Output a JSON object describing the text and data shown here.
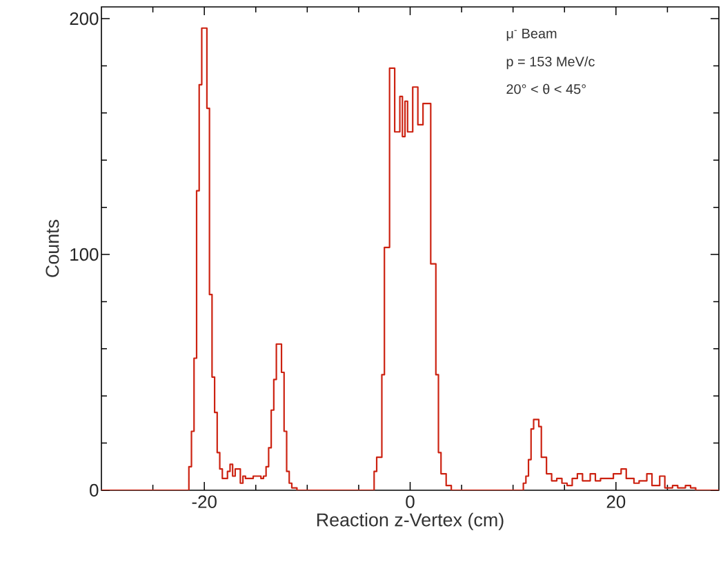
{
  "chart_data": {
    "type": "histogram",
    "xlabel": "Reaction z-Vertex (cm)",
    "ylabel": "Counts",
    "annotations": [
      "μ$^{-}$ Beam",
      "p = 153 MeV/c",
      "20° < θ < 45°"
    ],
    "color": "#cc2211",
    "xlim": [
      -30,
      30
    ],
    "ylim": [
      0,
      205
    ],
    "xticks": [
      {
        "value": -25,
        "label": null
      },
      -20,
      {
        "value": -15,
        "label": null
      },
      {
        "value": -10,
        "label": null
      },
      {
        "value": -5,
        "label": null
      },
      0,
      {
        "value": 5,
        "label": null
      },
      {
        "value": 10,
        "label": null
      },
      {
        "value": 15,
        "label": null
      },
      20,
      {
        "value": 25,
        "label": null
      }
    ],
    "yticks": [
      0,
      {
        "value": 20,
        "label": null
      },
      {
        "value": 40,
        "label": null
      },
      {
        "value": 60,
        "label": null
      },
      {
        "value": 80,
        "label": null
      },
      100,
      {
        "value": 120,
        "label": null
      },
      {
        "value": 140,
        "label": null
      },
      {
        "value": 160,
        "label": null
      },
      {
        "value": 180,
        "label": null
      },
      200
    ],
    "bins": [
      -30,
      -29.75,
      -29.5,
      -29.25,
      -29,
      -28.75,
      -28.5,
      -28.25,
      -28,
      -27.75,
      -27.5,
      -27.25,
      -27,
      -26.75,
      -26.5,
      -26.25,
      -26,
      -25.75,
      -25.5,
      -25.25,
      -25,
      -24.75,
      -24.5,
      -24.25,
      -24,
      -23.75,
      -23.5,
      -23.25,
      -23,
      -22.75,
      -22.5,
      -22.25,
      -22,
      -21.75,
      -21.5,
      -21.25,
      -21,
      -20.75,
      -20.5,
      -20.25,
      -20,
      -19.75,
      -19.5,
      -19.25,
      -19,
      -18.75,
      -18.5,
      -18.25,
      -18,
      -17.75,
      -17.5,
      -17.25,
      -17,
      -16.75,
      -16.5,
      -16.25,
      -16,
      -15.75,
      -15.5,
      -15.25,
      -15,
      -14.75,
      -14.5,
      -14.25,
      -14,
      -13.75,
      -13.5,
      -13.25,
      -13,
      -12.75,
      -12.5,
      -12.25,
      -12,
      -11.75,
      -11.5,
      -11.25,
      -11,
      -10.75,
      -10.5,
      -10.25,
      -10,
      -9.75,
      -9.5,
      -9.25,
      -9,
      -8.75,
      -8.5,
      -8.25,
      -8,
      -7.75,
      -7.5,
      -7.25,
      -7,
      -6.75,
      -6.5,
      -6.25,
      -6,
      -5.75,
      -5.5,
      -5.25,
      -5,
      -4.75,
      -4.5,
      -4.25,
      -4,
      -3.75,
      -3.5,
      -3.25,
      -3,
      -2.75,
      -2.5,
      -2.25,
      -2,
      -1.75,
      -1.5,
      -1.25,
      -1,
      -0.75,
      -0.5,
      -0.25,
      0,
      0.25,
      0.5,
      0.75,
      1,
      1.25,
      1.5,
      1.75,
      2,
      2.25,
      2.5,
      2.75,
      3,
      3.25,
      3.5,
      3.75,
      4,
      4.25,
      4.5,
      4.75,
      5,
      5.25,
      5.5,
      5.75,
      6,
      6.25,
      6.5,
      6.75,
      7,
      7.25,
      7.5,
      7.75,
      8,
      8.25,
      8.5,
      8.75,
      9,
      9.25,
      9.5,
      9.75,
      10,
      10.25,
      10.5,
      10.75,
      11,
      11.25,
      11.5,
      11.75,
      12,
      12.25,
      12.5,
      12.75,
      13,
      13.25,
      13.5,
      13.75,
      14,
      14.25,
      14.5,
      14.75,
      15,
      15.25,
      15.5,
      15.75,
      16,
      16.25,
      16.5,
      16.75,
      17,
      17.25,
      17.5,
      17.75,
      18,
      18.25,
      18.5,
      18.75,
      19,
      19.25,
      19.5,
      19.75,
      20,
      20.25,
      20.5,
      20.75,
      21,
      21.25,
      21.5,
      21.75,
      22,
      22.25,
      22.5,
      22.75,
      23,
      23.25,
      23.5,
      23.75,
      24,
      24.25,
      24.5,
      24.75,
      25,
      25.25,
      25.5,
      25.75,
      26,
      26.25,
      26.5,
      26.75,
      27,
      27.25,
      27.5,
      27.75,
      28,
      28.25,
      28.5,
      28.75,
      29,
      29.25,
      29.5,
      29.75,
      30
    ],
    "values": [
      0,
      0,
      0,
      0,
      0,
      0,
      0,
      0,
      0,
      0,
      0,
      0,
      0,
      0,
      0,
      0,
      0,
      0,
      0,
      0,
      0,
      0,
      0,
      0,
      0,
      0,
      0,
      0,
      0,
      0,
      0,
      0,
      0,
      0,
      10,
      25,
      56,
      127,
      172,
      196,
      196,
      162,
      83,
      48,
      33,
      16,
      9,
      5,
      5,
      8,
      11,
      6,
      9,
      9,
      3,
      6,
      5,
      5,
      5,
      6,
      6,
      6,
      5,
      6,
      10,
      18,
      34,
      47,
      62,
      62,
      50,
      25,
      8,
      3,
      1,
      1,
      0,
      0,
      0,
      0,
      0,
      0,
      0,
      0,
      0,
      0,
      0,
      0,
      0,
      0,
      0,
      0,
      0,
      0,
      0,
      0,
      0,
      0,
      0,
      0,
      0,
      0,
      0,
      0,
      0,
      0,
      8,
      14,
      14,
      49,
      103,
      103,
      179,
      179,
      152,
      152,
      167,
      150,
      165,
      152,
      152,
      171,
      171,
      155,
      155,
      164,
      164,
      164,
      96,
      96,
      49,
      16,
      7,
      7,
      2,
      2,
      0,
      0,
      0,
      0,
      0,
      0,
      0,
      0,
      0,
      0,
      0,
      0,
      0,
      0,
      0,
      0,
      0,
      0,
      0,
      0,
      0,
      0,
      0,
      0,
      0,
      0,
      0,
      0,
      3,
      6,
      13,
      26,
      30,
      30,
      27,
      14,
      14,
      7,
      7,
      4,
      4,
      5,
      5,
      3,
      3,
      2,
      2,
      5,
      5,
      7,
      7,
      4,
      4,
      4,
      7,
      7,
      4,
      4,
      5,
      5,
      5,
      5,
      5,
      7,
      7,
      7,
      9,
      9,
      5,
      5,
      5,
      3,
      3,
      4,
      4,
      4,
      7,
      7,
      2,
      2,
      2,
      6,
      6,
      1,
      1,
      1,
      2,
      2,
      1,
      1,
      1,
      2,
      2,
      1,
      1,
      0,
      0,
      0,
      0,
      0,
      0,
      0,
      0,
      0
    ]
  }
}
